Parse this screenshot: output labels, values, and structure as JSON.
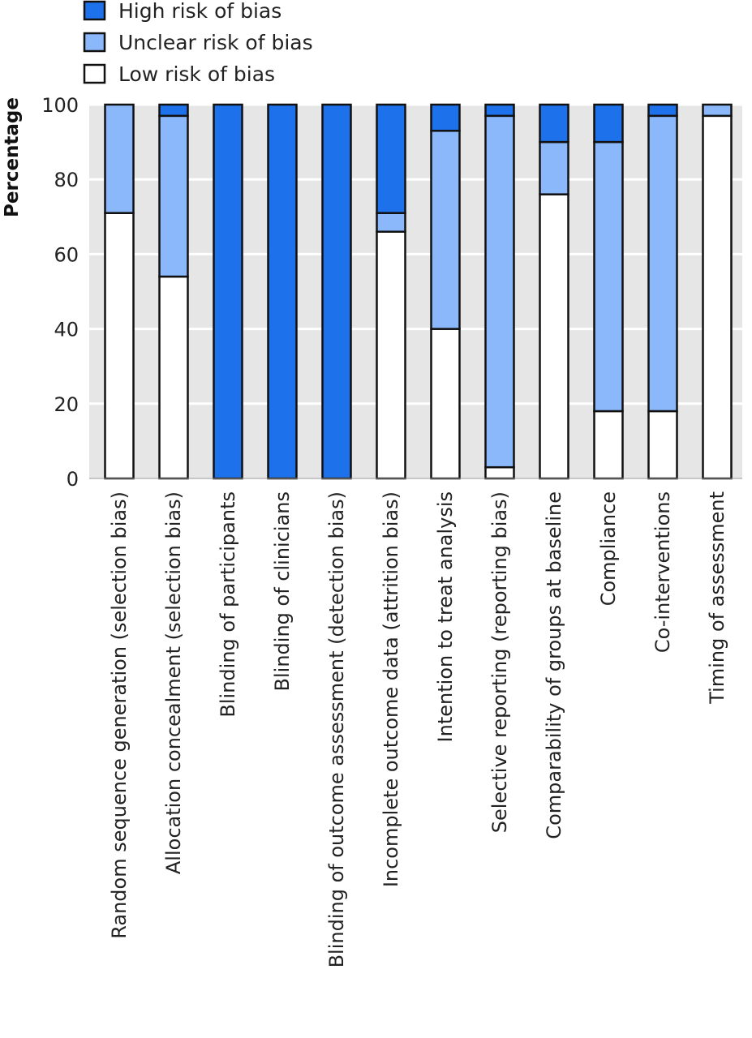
{
  "chart_data": {
    "type": "bar",
    "stacked": true,
    "orientation": "vertical",
    "ylabel": "Percentage",
    "ylim": [
      0,
      100
    ],
    "yticks": [
      0,
      20,
      40,
      60,
      80,
      100
    ],
    "grid": true,
    "legend_position": "top-left",
    "categories": [
      "Random sequence generation (selection bias)",
      "Allocation concealment (selection bias)",
      "Blinding of participants",
      "Blinding of clinicians",
      "Blinding of outcome assessment (detection bias)",
      "Incomplete outcome data (attrition bias)",
      "Intention to treat analysis",
      "Selective reporting (reporting bias)",
      "Comparability of groups at baseline",
      "Compliance",
      "Co-interventions",
      "Timing of assessment"
    ],
    "series": [
      {
        "name": "Low risk of bias",
        "color": "#ffffff",
        "values": [
          71,
          54,
          0,
          0,
          0,
          66,
          40,
          3,
          76,
          18,
          18,
          97
        ]
      },
      {
        "name": "Unclear risk of bias",
        "color": "#8ab8fa",
        "values": [
          29,
          43,
          0,
          0,
          0,
          5,
          53,
          94,
          14,
          72,
          79,
          3
        ]
      },
      {
        "name": "High risk of bias",
        "color": "#1d72eb",
        "values": [
          0,
          3,
          100,
          100,
          100,
          29,
          7,
          3,
          10,
          10,
          3,
          0
        ]
      }
    ],
    "legend_order": [
      "High risk of bias",
      "Unclear risk of bias",
      "Low risk of bias"
    ]
  }
}
